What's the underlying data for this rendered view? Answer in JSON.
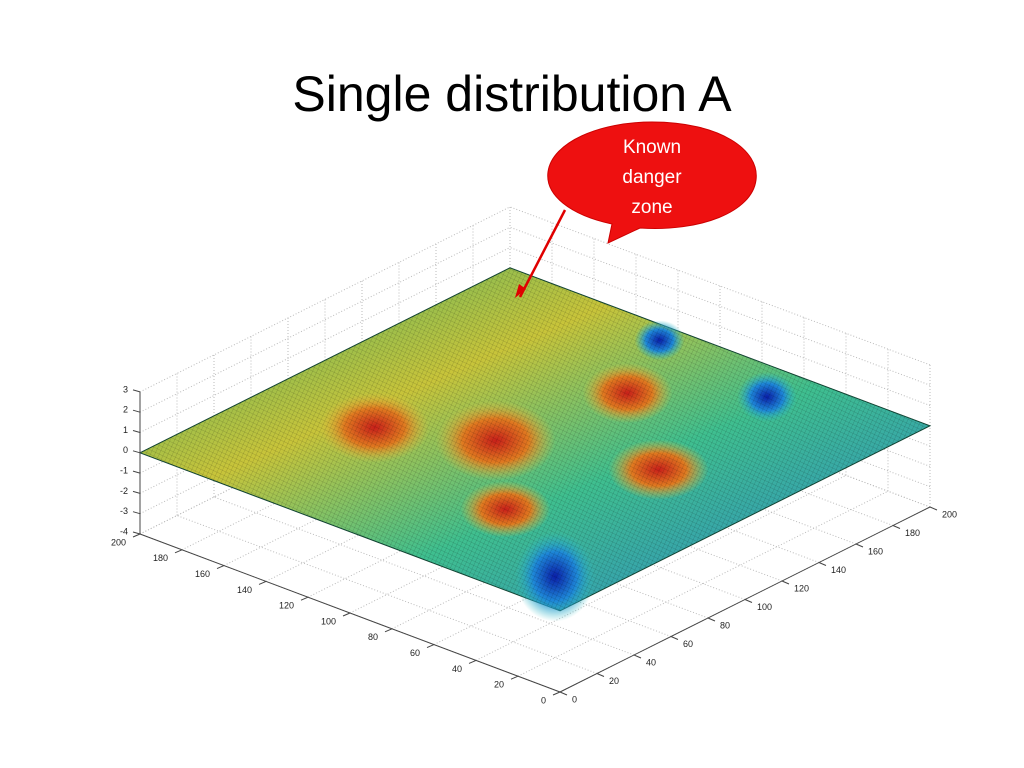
{
  "title": "Single distribution A",
  "callout": {
    "lines": [
      "Known",
      "danger",
      "zone"
    ]
  },
  "chart_data": {
    "type": "surface",
    "xlim": [
      0,
      200
    ],
    "xticks": [
      0,
      20,
      40,
      60,
      80,
      100,
      120,
      140,
      160,
      180,
      200
    ],
    "ylim": [
      0,
      200
    ],
    "yticks": [
      0,
      20,
      40,
      60,
      80,
      100,
      120,
      140,
      160,
      180,
      200
    ],
    "zlim": [
      -4,
      3
    ],
    "zticks": [
      -4,
      -3,
      -2,
      -1,
      0,
      1,
      2,
      3
    ],
    "grid": true
  }
}
